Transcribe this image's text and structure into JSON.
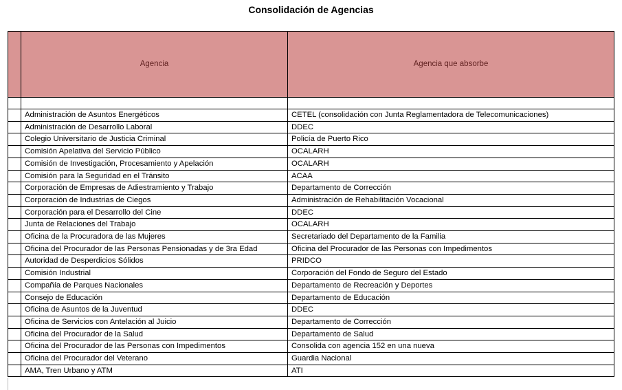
{
  "title": "Consolidación de Agencias",
  "table": {
    "headers": [
      "Agencia",
      "Agencia que absorbe"
    ],
    "rows": [
      [
        "Administración de Asuntos Energéticos",
        "CETEL (consolidación con Junta Reglamentadora de Telecomunicaciones)"
      ],
      [
        "Administración de Desarrollo Laboral",
        "DDEC"
      ],
      [
        "Colegio Universitario de Justicia Criminal",
        "Policía de Puerto Rico"
      ],
      [
        "Comisión Apelativa del Servicio Público",
        "OCALARH"
      ],
      [
        "Comisión de Investigación, Procesamiento y Apelación",
        "OCALARH"
      ],
      [
        "Comisión para la Seguridad en el Tránsito",
        "ACAA"
      ],
      [
        "Corporación de Empresas de Adiestramiento y Trabajo",
        "Departamento de Corrección"
      ],
      [
        "Corporación de Industrias de Ciegos",
        "Administración de Rehabilitación Vocacional"
      ],
      [
        "Corporación para el Desarrollo del Cine",
        "DDEC"
      ],
      [
        "Junta de Relaciones del Trabajo",
        "OCALARH"
      ],
      [
        "Oficina de la Procuradora de las Mujeres",
        "Secretariado del Departamento de la Familia"
      ],
      [
        "Oficina del Procurador de las Personas Pensionadas y de 3ra Edad",
        "Oficina del Procurador de las Personas con Impedimentos"
      ],
      [
        "Autoridad de Desperdicios Sólidos",
        "PRIDCO"
      ],
      [
        "Comisión Industrial",
        "Corporación del Fondo de Seguro del Estado"
      ],
      [
        "Compañía de Parques Nacionales",
        "Departamento de Recreación y Deportes"
      ],
      [
        "Consejo de Educación",
        "Departamento de Educación"
      ],
      [
        "Oficina de Asuntos de la Juventud",
        "DDEC"
      ],
      [
        "Oficina de Servicios con Antelación al Juicio",
        "Departamento de Corrección"
      ],
      [
        "Oficina del Procurador de la Salud",
        "Departamento de Salud"
      ],
      [
        "Oficina del Procurador de las Personas con Impedimentos",
        "Consolida con agencia 152 en una nueva"
      ],
      [
        "Oficina del Procurador del Veterano",
        "Guardia Nacional"
      ],
      [
        "AMA, Tren Urbano y ATM",
        "ATI"
      ]
    ]
  },
  "colors": {
    "header_bg": "#d99594",
    "header_text": "#632423"
  }
}
